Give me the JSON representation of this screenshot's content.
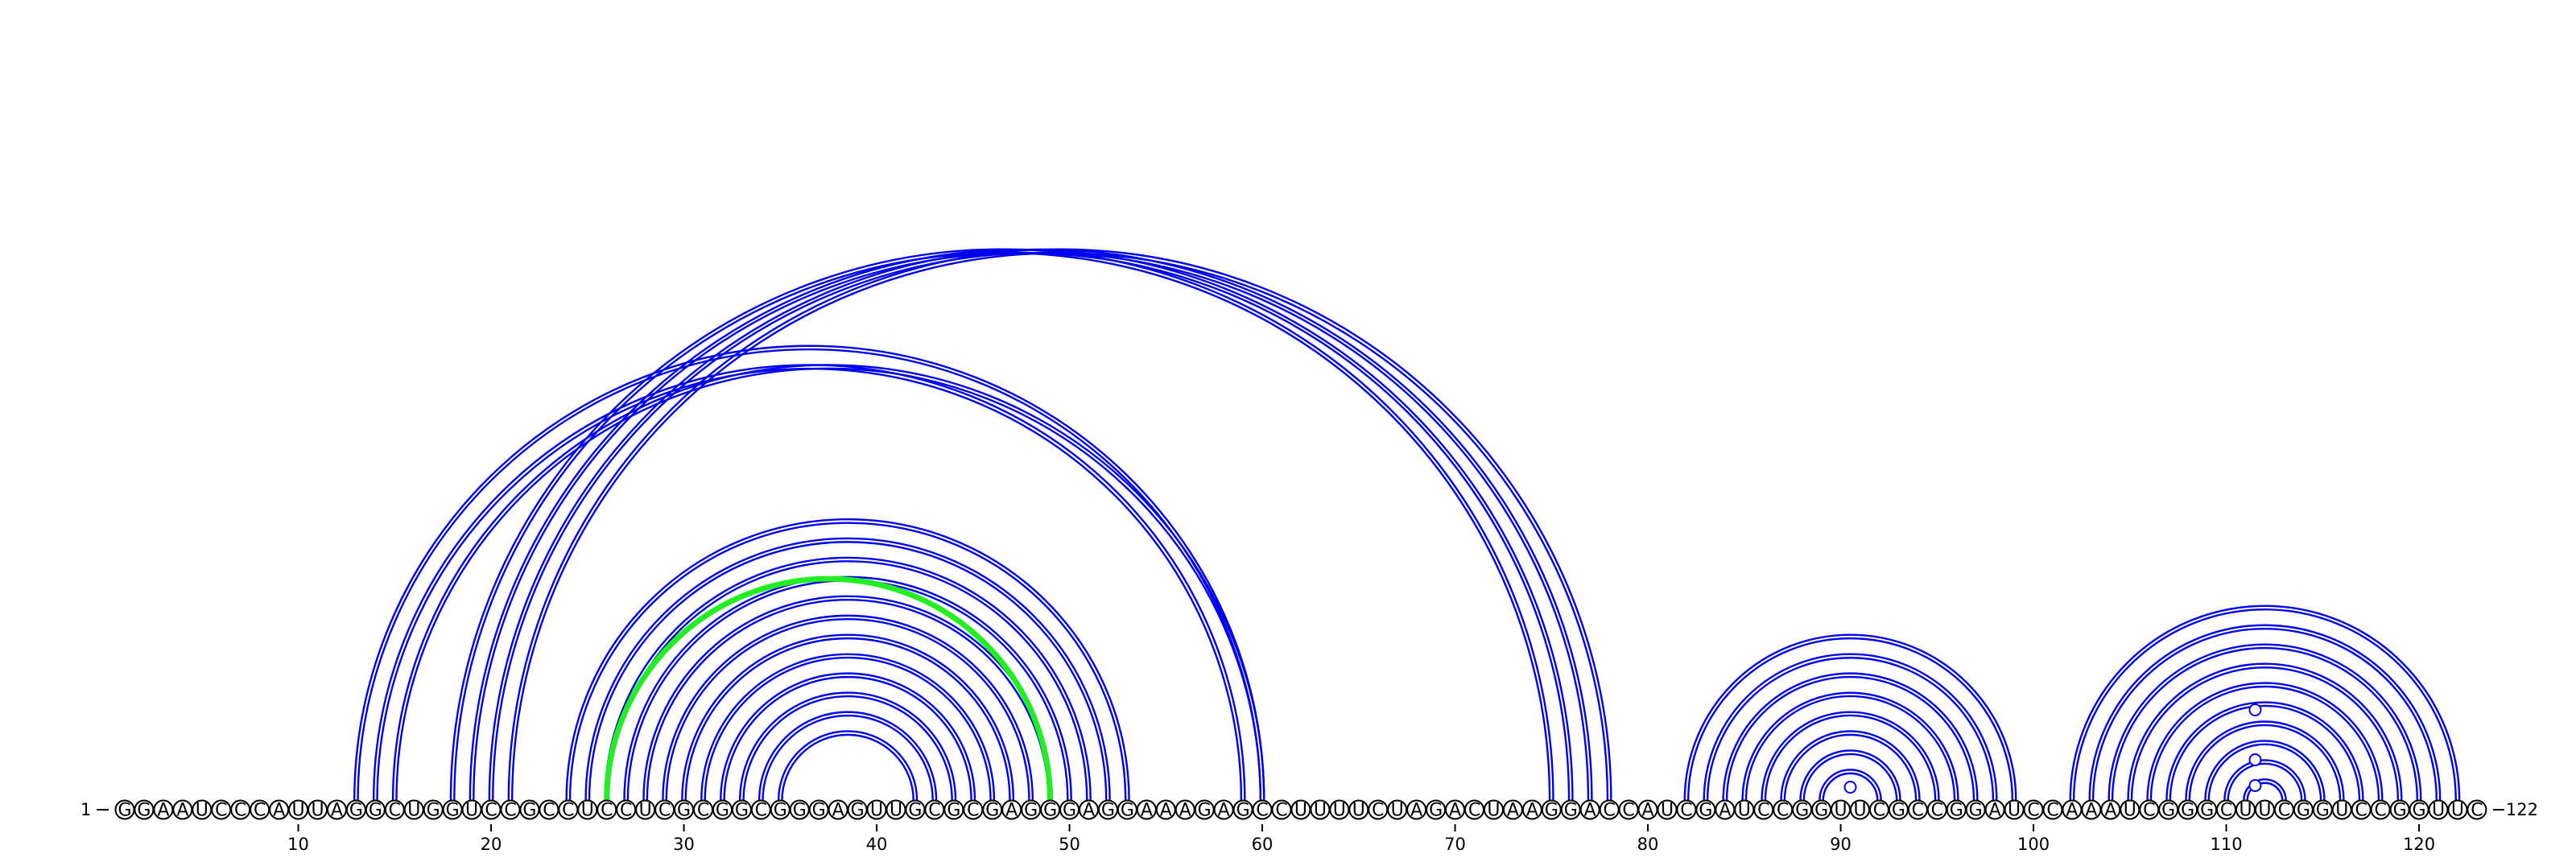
{
  "sequence": "GGAAUCCCAUUAGGCUGGUCCGCCUCCUCGCGGCGGGAGUUGCGCGAGGGAGGAAAGAGCCUUUUCUAGACUAAGGACCAUCGAUCCGGUUCGCCGGAUCCAAAUCGGGCUUCGGUCCGGUUC",
  "start_label": "1",
  "end_label": "122",
  "ticks": [
    "10",
    "20",
    "30",
    "40",
    "50",
    "60",
    "70",
    "80",
    "90",
    "100",
    "110",
    "120"
  ],
  "colors": {
    "arc": "#0000ee",
    "highlight": "#22ee22",
    "circle_stroke": "#000000"
  },
  "pairs": [
    [
      13,
      60,
      1
    ],
    [
      14,
      59,
      1
    ],
    [
      15,
      60,
      1
    ],
    [
      18,
      75,
      1
    ],
    [
      19,
      76,
      1
    ],
    [
      20,
      77,
      1
    ],
    [
      21,
      78,
      1
    ],
    [
      24,
      53,
      1
    ],
    [
      25,
      52,
      1
    ],
    [
      26,
      51,
      1
    ],
    [
      27,
      50,
      1
    ],
    [
      28,
      49,
      1
    ],
    [
      26,
      49,
      2
    ],
    [
      29,
      48,
      1
    ],
    [
      30,
      47,
      1
    ],
    [
      31,
      46,
      1
    ],
    [
      32,
      45,
      1
    ],
    [
      33,
      44,
      1
    ],
    [
      34,
      43,
      1
    ],
    [
      35,
      42,
      1
    ],
    [
      82,
      99,
      1
    ],
    [
      83,
      98,
      1
    ],
    [
      84,
      97,
      1
    ],
    [
      85,
      96,
      1
    ],
    [
      86,
      95,
      1
    ],
    [
      87,
      94,
      1
    ],
    [
      88,
      93,
      1
    ],
    [
      89,
      92,
      1
    ],
    [
      102,
      122,
      1
    ],
    [
      103,
      121,
      1
    ],
    [
      104,
      120,
      1
    ],
    [
      105,
      119,
      1
    ],
    [
      106,
      118,
      1
    ],
    [
      107,
      117,
      1
    ],
    [
      108,
      116,
      1
    ],
    [
      109,
      115,
      1
    ],
    [
      110,
      114,
      1
    ],
    [
      111,
      113,
      1
    ]
  ],
  "loop_markers": [
    [
      90,
      91
    ],
    [
      111,
      112
    ],
    [
      111,
      112
    ],
    [
      111,
      112
    ]
  ]
}
